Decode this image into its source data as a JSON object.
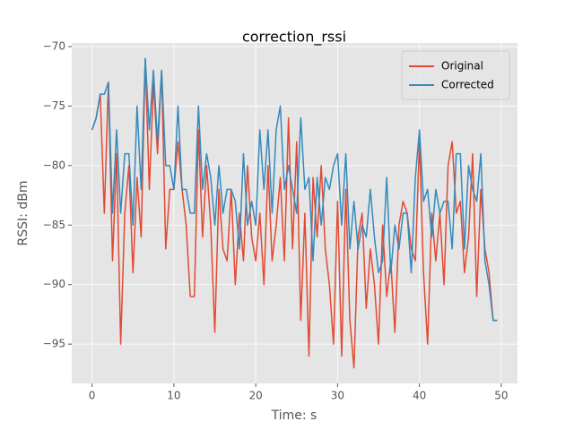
{
  "chart_data": {
    "type": "line",
    "title": "correction_rssi",
    "x_label": "Time: s",
    "y_label": "RSSI: dBm",
    "x": [
      0,
      0.5,
      1,
      1.5,
      2,
      2.5,
      3,
      3.5,
      4,
      4.5,
      5,
      5.5,
      6,
      6.5,
      7,
      7.5,
      8,
      8.5,
      9,
      9.5,
      10,
      10.5,
      11,
      11.5,
      12,
      12.5,
      13,
      13.5,
      14,
      14.5,
      15,
      15.5,
      16,
      16.5,
      17,
      17.5,
      18,
      18.5,
      19,
      19.5,
      20,
      20.5,
      21,
      21.5,
      22,
      22.5,
      23,
      23.5,
      24,
      24.5,
      25,
      25.5,
      26,
      26.5,
      27,
      27.5,
      28,
      28.5,
      29,
      29.5,
      30,
      30.5,
      31,
      31.5,
      32,
      32.5,
      33,
      33.5,
      34,
      34.5,
      35,
      35.5,
      36,
      36.5,
      37,
      37.5,
      38,
      38.5,
      39,
      39.5,
      40,
      40.5,
      41,
      41.5,
      42,
      42.5,
      43,
      43.5,
      44,
      44.5,
      45,
      45.5,
      46,
      46.5,
      47,
      47.5,
      48,
      48.5,
      49,
      49.5
    ],
    "series": [
      {
        "name": "Original",
        "color": "#E24A33",
        "values": [
          -77,
          -76,
          -74,
          -84,
          -73,
          -88,
          -79,
          -95,
          -84,
          -80,
          -89,
          -81,
          -86,
          -71,
          -82,
          -73,
          -79,
          -72,
          -87,
          -82,
          -82,
          -78,
          -82,
          -85,
          -91,
          -91,
          -77,
          -86,
          -80,
          -85,
          -94,
          -82,
          -87,
          -88,
          -82,
          -90,
          -84,
          -88,
          -80,
          -86,
          -88,
          -84,
          -90,
          -80,
          -88,
          -85,
          -81,
          -88,
          -76,
          -87,
          -78,
          -93,
          -84,
          -96,
          -81,
          -86,
          -80,
          -87,
          -90,
          -95,
          -83,
          -96,
          -82,
          -93,
          -97,
          -86,
          -84,
          -92,
          -87,
          -90,
          -95,
          -85,
          -91,
          -88,
          -94,
          -85,
          -83,
          -84,
          -87,
          -88,
          -78,
          -89,
          -95,
          -84,
          -88,
          -84,
          -90,
          -80,
          -78,
          -84,
          -83,
          -89,
          -86,
          -79,
          -91,
          -82,
          -87,
          -89,
          -93,
          -93
        ]
      },
      {
        "name": "Corrected",
        "color": "#348ABD",
        "values": [
          -77,
          -76,
          -74,
          -74,
          -73,
          -84,
          -77,
          -84,
          -79,
          -79,
          -85,
          -75,
          -82,
          -71,
          -77,
          -72,
          -78,
          -72,
          -80,
          -80,
          -82,
          -75,
          -82,
          -82,
          -84,
          -84,
          -75,
          -82,
          -79,
          -81,
          -85,
          -80,
          -84,
          -82,
          -82,
          -83,
          -87,
          -79,
          -85,
          -83,
          -85,
          -77,
          -82,
          -77,
          -84,
          -77,
          -75,
          -82,
          -80,
          -82,
          -84,
          -76,
          -82,
          -81,
          -88,
          -81,
          -85,
          -81,
          -82,
          -80,
          -79,
          -85,
          -79,
          -87,
          -83,
          -87,
          -85,
          -86,
          -82,
          -86,
          -89,
          -88,
          -81,
          -89,
          -85,
          -87,
          -84,
          -84,
          -89,
          -81,
          -77,
          -83,
          -82,
          -86,
          -82,
          -84,
          -83,
          -83,
          -87,
          -79,
          -79,
          -87,
          -80,
          -82,
          -83,
          -79,
          -88,
          -90,
          -93,
          -93
        ]
      }
    ],
    "xlim": [
      -2.48,
      51.98
    ],
    "ylim": [
      -98.3,
      -69.7
    ],
    "xticks": [
      0,
      10,
      20,
      30,
      40,
      50
    ],
    "yticks": [
      {
        "value": -95,
        "label": "−95"
      },
      {
        "value": -90,
        "label": "−90"
      },
      {
        "value": -85,
        "label": "−85"
      },
      {
        "value": -80,
        "label": "−80"
      },
      {
        "value": -75,
        "label": "−75"
      },
      {
        "value": -70,
        "label": "−70"
      }
    ],
    "grid": true,
    "legend": "upper right"
  }
}
